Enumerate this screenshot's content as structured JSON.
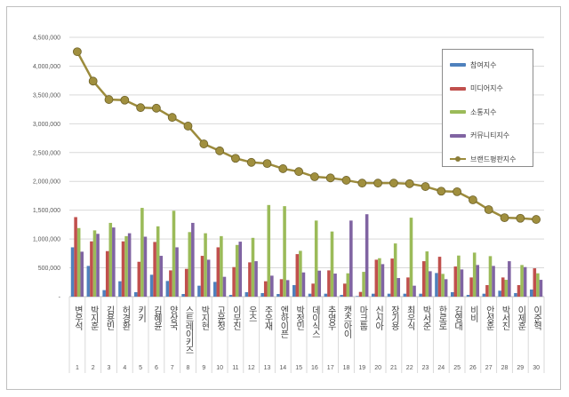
{
  "chart_data": {
    "type": "bar",
    "categories": [
      "변우석",
      "박지훈",
      "김용빈",
      "허경환",
      "키키",
      "김혜윤",
      "양상국",
      "스트레이키즈",
      "박지현",
      "고윤정",
      "이무진",
      "우즈",
      "주우재",
      "엔하이픈",
      "박정민",
      "데이식스",
      "추영우",
      "캣츠아이",
      "마크툽",
      "신시아",
      "장기용",
      "최우식",
      "박서준",
      "한로로",
      "김영대",
      "비비",
      "안성훈",
      "박서진",
      "이제훈",
      "이준혁"
    ],
    "ranks": [
      "1",
      "2",
      "3",
      "4",
      "5",
      "6",
      "7",
      "8",
      "9",
      "10",
      "11",
      "12",
      "13",
      "14",
      "15",
      "16",
      "17",
      "18",
      "19",
      "20",
      "21",
      "22",
      "23",
      "24",
      "25",
      "26",
      "27",
      "28",
      "29",
      "30"
    ],
    "series": [
      {
        "name": "참여지수",
        "type": "bar",
        "color": "#4f81bd",
        "values": [
          856000,
          533000,
          113000,
          267000,
          77000,
          380000,
          272000,
          46000,
          190000,
          256000,
          30000,
          77000,
          62000,
          46000,
          200000,
          51000,
          51000,
          30000,
          10000,
          51000,
          51000,
          51000,
          51000,
          410000,
          77000,
          30000,
          51000,
          103000,
          62000,
          123000
        ]
      },
      {
        "name": "미디어지수",
        "type": "bar",
        "color": "#c0504d",
        "values": [
          1380000,
          959000,
          790000,
          959000,
          605000,
          949000,
          456000,
          482000,
          708000,
          856000,
          513000,
          595000,
          267000,
          303000,
          738000,
          226000,
          456000,
          226000,
          82000,
          641000,
          661000,
          333000,
          615000,
          692000,
          523000,
          333000,
          200000,
          333000,
          200000,
          492000
        ]
      },
      {
        "name": "소통지수",
        "type": "bar",
        "color": "#9bbb59",
        "values": [
          1190000,
          1150000,
          1280000,
          1050000,
          1540000,
          1220000,
          1490000,
          1120000,
          1100000,
          1050000,
          897000,
          1020000,
          1590000,
          1570000,
          795000,
          1320000,
          1130000,
          405000,
          430000,
          667000,
          923000,
          1370000,
          785000,
          395000,
          713000,
          764000,
          703000,
          292000,
          549000,
          405000
        ]
      },
      {
        "name": "커뮤니티지수",
        "type": "bar",
        "color": "#8064a2",
        "values": [
          780000,
          1090000,
          1200000,
          1100000,
          1040000,
          708000,
          856000,
          1280000,
          641000,
          344000,
          954000,
          615000,
          364000,
          287000,
          420000,
          451000,
          400000,
          1320000,
          1430000,
          564000,
          323000,
          190000,
          441000,
          303000,
          472000,
          549000,
          533000,
          615000,
          513000,
          292000
        ]
      },
      {
        "name": "브랜드평판지수",
        "type": "line",
        "color": "#9c8b3c",
        "values": [
          4250000,
          3740000,
          3420000,
          3410000,
          3280000,
          3270000,
          3110000,
          2960000,
          2650000,
          2530000,
          2400000,
          2330000,
          2310000,
          2220000,
          2170000,
          2080000,
          2060000,
          2020000,
          1970000,
          1970000,
          1970000,
          1960000,
          1910000,
          1830000,
          1820000,
          1680000,
          1510000,
          1370000,
          1360000,
          1340000
        ]
      }
    ],
    "yticks": [
      "-",
      "500,000",
      "1,000,000",
      "1,500,000",
      "2,000,000",
      "2,500,000",
      "3,000,000",
      "3,500,000",
      "4,000,000",
      "4,500,000"
    ],
    "ylim": [
      0,
      4500000
    ],
    "grid": true,
    "legend_position": "top-right"
  }
}
